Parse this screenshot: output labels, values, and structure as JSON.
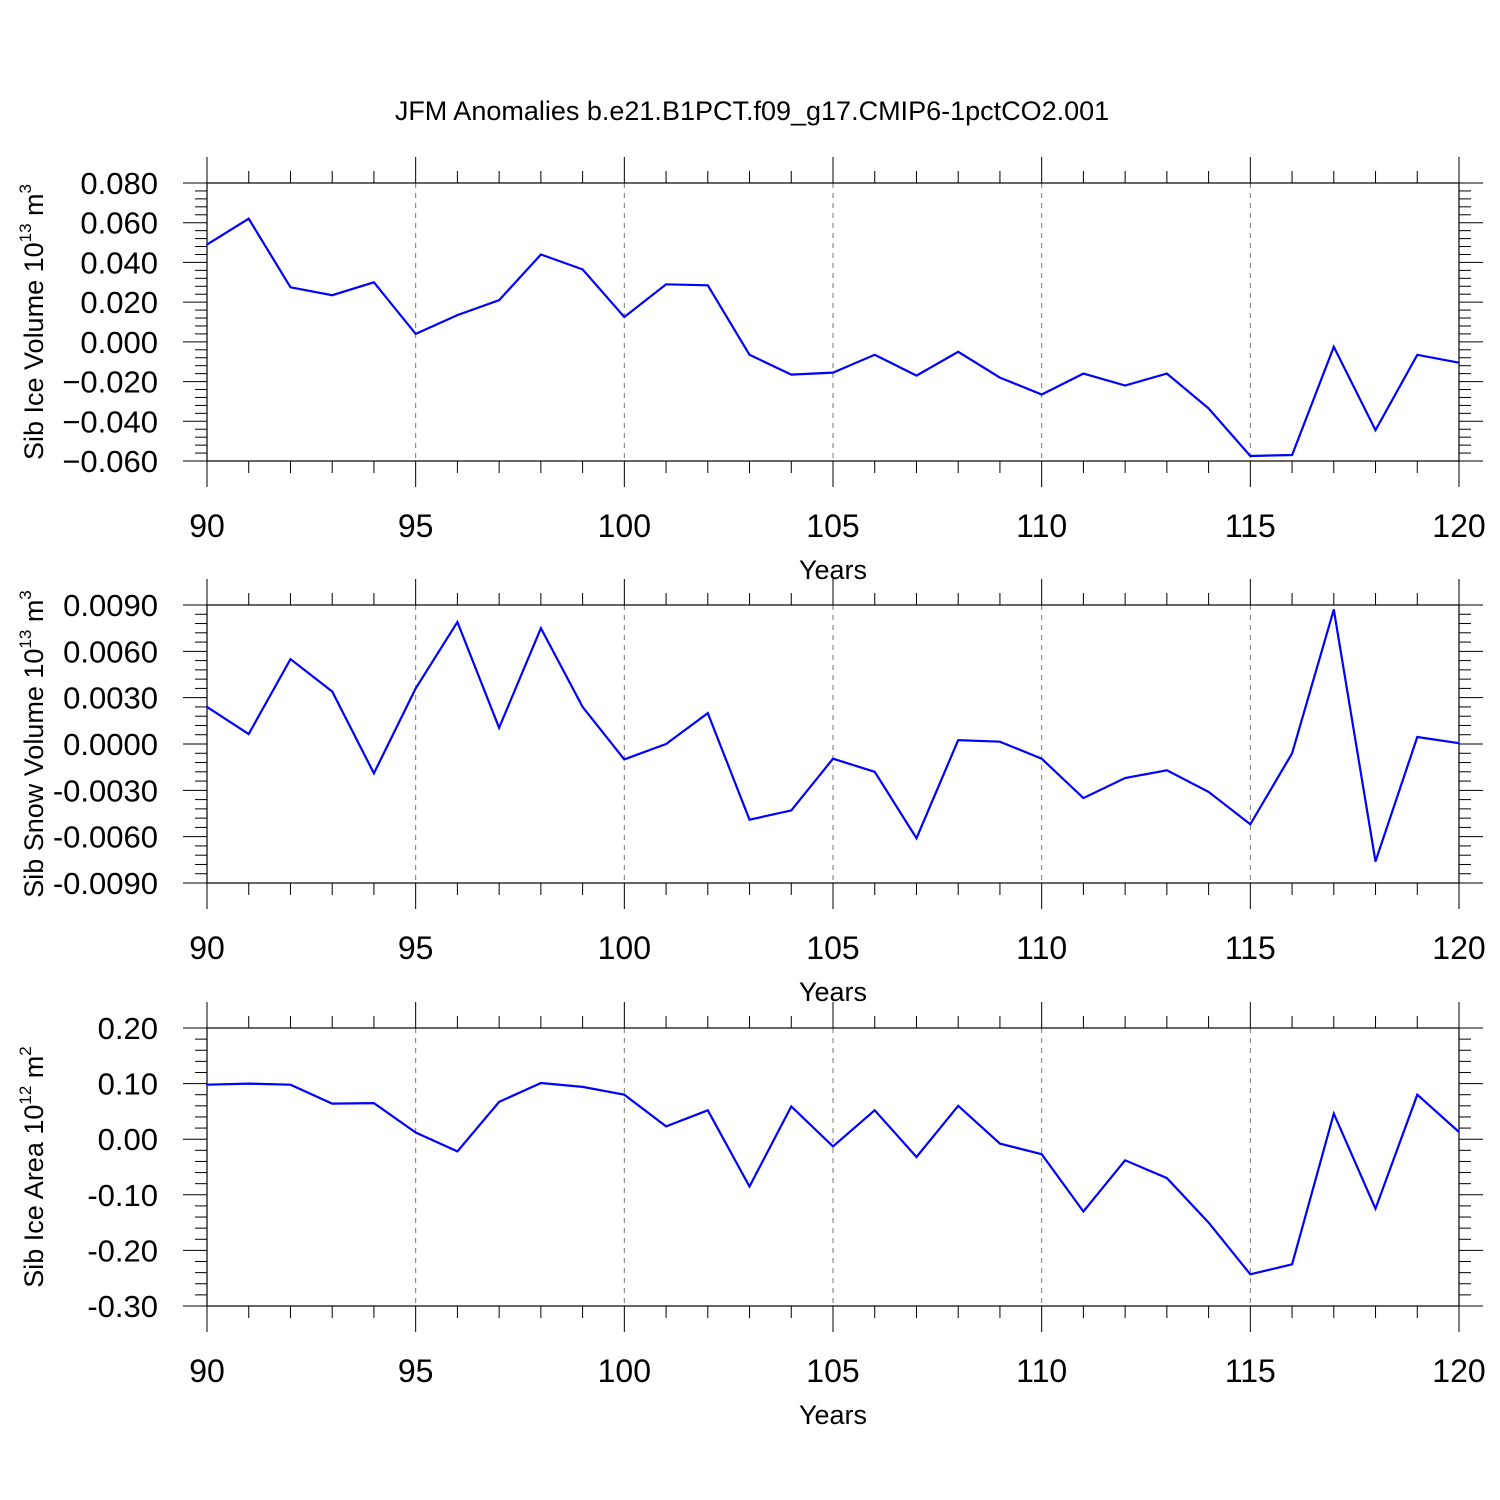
{
  "title": "JFM Anomalies b.e21.B1PCT.f09_g17.CMIP6-1pctCO2.001",
  "chart_data": [
    {
      "type": "line",
      "xlabel": "Years",
      "ylabel": "Sib Ice Volume 10",
      "ylabel_exp": "13",
      "ylabel_unit": " m",
      "ylabel_unit_exp": "3",
      "xlim": [
        90,
        120
      ],
      "ylim": [
        -0.06,
        0.08
      ],
      "yticks": [
        0.08,
        0.06,
        0.04,
        0.02,
        0.0,
        -0.02,
        -0.04,
        -0.06
      ],
      "ytick_labels": [
        "0.080",
        "0.060",
        "0.040",
        "0.020",
        "0.000",
        "−0.020",
        "−0.040",
        "−0.060"
      ],
      "xticks": [
        90,
        95,
        100,
        105,
        110,
        115,
        120
      ],
      "xtick_labels": [
        "90",
        "95",
        "100",
        "105",
        "110",
        "115",
        "120"
      ],
      "grid": "vertical dashed at major x ticks",
      "line_color": "#0000ff",
      "x": [
        90,
        91,
        92,
        93,
        94,
        95,
        96,
        97,
        98,
        99,
        100,
        101,
        102,
        103,
        104,
        105,
        106,
        107,
        108,
        109,
        110,
        111,
        112,
        113,
        114,
        115,
        116,
        117,
        118,
        119,
        120
      ],
      "y": [
        0.049,
        0.062,
        0.0275,
        0.0235,
        0.03,
        0.004,
        0.0135,
        0.021,
        0.044,
        0.0365,
        0.0125,
        0.029,
        0.0285,
        -0.0065,
        -0.0165,
        -0.0155,
        -0.0065,
        -0.017,
        -0.005,
        -0.018,
        -0.0265,
        -0.016,
        -0.022,
        -0.016,
        -0.0335,
        -0.0575,
        -0.057,
        -0.0025,
        -0.0445,
        -0.0065,
        -0.0105
      ]
    },
    {
      "type": "line",
      "xlabel": "Years",
      "ylabel": "Sib Snow Volume 10",
      "ylabel_exp": "13",
      "ylabel_unit": " m",
      "ylabel_unit_exp": "3",
      "xlim": [
        90,
        120
      ],
      "ylim": [
        -0.009,
        0.009
      ],
      "yticks": [
        0.009,
        0.006,
        0.003,
        0.0,
        -0.003,
        -0.006,
        -0.009
      ],
      "ytick_labels": [
        "0.0090",
        "0.0060",
        "0.0030",
        "0.0000",
        "-0.0030",
        "-0.0060",
        "-0.0090"
      ],
      "xticks": [
        90,
        95,
        100,
        105,
        110,
        115,
        120
      ],
      "xtick_labels": [
        "90",
        "95",
        "100",
        "105",
        "110",
        "115",
        "120"
      ],
      "grid": "vertical dashed at major x ticks",
      "line_color": "#0000ff",
      "x": [
        90,
        91,
        92,
        93,
        94,
        95,
        96,
        97,
        98,
        99,
        100,
        101,
        102,
        103,
        104,
        105,
        106,
        107,
        108,
        109,
        110,
        111,
        112,
        113,
        114,
        115,
        116,
        117,
        118,
        119,
        120
      ],
      "y": [
        0.0024,
        0.00065,
        0.0055,
        0.0034,
        -0.0019,
        0.0036,
        0.0079,
        0.00105,
        0.0075,
        0.0024,
        -0.001,
        0.0,
        0.002,
        -0.0049,
        -0.0043,
        -0.00095,
        -0.0018,
        -0.0061,
        0.00025,
        0.00015,
        -0.00095,
        -0.0035,
        -0.0022,
        -0.0017,
        -0.0031,
        -0.0052,
        -0.0006,
        0.0087,
        -0.0076,
        0.00045,
        5e-05
      ]
    },
    {
      "type": "line",
      "xlabel": "Years",
      "ylabel": "Sib Ice Area 10",
      "ylabel_exp": "12",
      "ylabel_unit": " m",
      "ylabel_unit_exp": "2",
      "xlim": [
        90,
        120
      ],
      "ylim": [
        -0.3,
        0.2
      ],
      "yticks": [
        0.2,
        0.1,
        0.0,
        -0.1,
        -0.2,
        -0.3
      ],
      "ytick_labels": [
        "0.20",
        "0.10",
        "0.00",
        "-0.10",
        "-0.20",
        "-0.30"
      ],
      "xticks": [
        90,
        95,
        100,
        105,
        110,
        115,
        120
      ],
      "xtick_labels": [
        "90",
        "95",
        "100",
        "105",
        "110",
        "115",
        "120"
      ],
      "grid": "vertical dashed at major x ticks",
      "line_color": "#0000ff",
      "x": [
        90,
        91,
        92,
        93,
        94,
        95,
        96,
        97,
        98,
        99,
        100,
        101,
        102,
        103,
        104,
        105,
        106,
        107,
        108,
        109,
        110,
        111,
        112,
        113,
        114,
        115,
        116,
        117,
        118,
        119,
        120
      ],
      "y": [
        0.098,
        0.1,
        0.098,
        0.064,
        0.065,
        0.012,
        -0.022,
        0.067,
        0.101,
        0.094,
        0.08,
        0.023,
        0.052,
        -0.085,
        0.059,
        -0.013,
        0.052,
        -0.032,
        0.06,
        -0.008,
        -0.027,
        -0.13,
        -0.038,
        -0.07,
        -0.15,
        -0.243,
        -0.225,
        0.046,
        -0.125,
        0.08,
        0.013
      ]
    }
  ]
}
